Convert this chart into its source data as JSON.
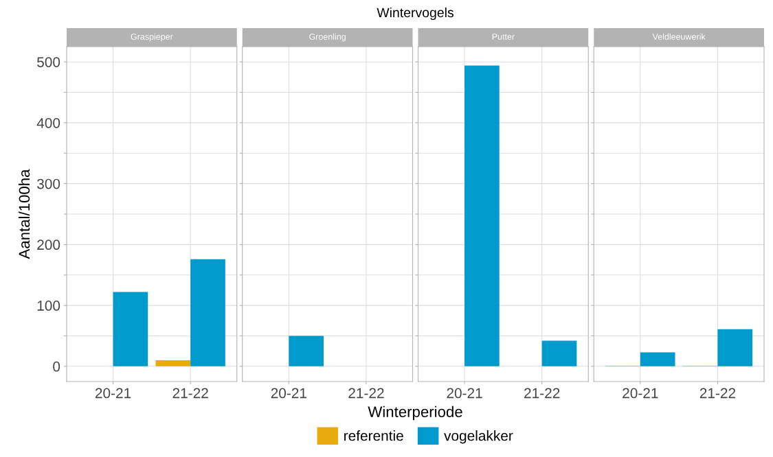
{
  "chart_data": [
    {
      "type": "bar",
      "title": "Graspieper",
      "ylabel": "Aantal/100ha",
      "annotations": [
        "Wintervogels",
        "Winterperiode"
      ],
      "categories": [
        "20-21",
        "21-22"
      ],
      "series": [
        {
          "name": "referentie",
          "color": "#e8ab0e",
          "values": [
            null,
            10
          ]
        },
        {
          "name": "vogelakker",
          "color": "#009acd",
          "values": [
            122,
            176
          ]
        }
      ],
      "ylim": [
        -25,
        525
      ],
      "yticks": [
        0,
        {
          "value": 50,
          "label": null
        },
        100,
        {
          "value": 150,
          "label": null
        },
        200,
        {
          "value": 250,
          "label": null
        },
        300,
        {
          "value": 350,
          "label": null
        },
        400,
        {
          "value": 450,
          "label": null
        },
        500
      ],
      "grid": true,
      "legend": "bottom"
    },
    {
      "type": "bar",
      "title": "Groenling",
      "categories": [
        "20-21",
        "21-22"
      ],
      "series": [
        {
          "color": "#e8ab0e",
          "values": [
            null,
            null
          ]
        },
        {
          "color": "#009acd",
          "values": [
            50,
            null
          ]
        }
      ],
      "ylim": [
        -25,
        525
      ],
      "yticks": [
        0,
        {
          "value": 50,
          "label": null
        },
        100,
        {
          "value": 150,
          "label": null
        },
        200,
        {
          "value": 250,
          "label": null
        },
        300,
        {
          "value": 350,
          "label": null
        },
        400,
        {
          "value": 450,
          "label": null
        },
        500
      ],
      "grid": true,
      "tick_labels": "x"
    },
    {
      "type": "bar",
      "title": "Putter",
      "categories": [
        "20-21",
        "21-22"
      ],
      "series": [
        {
          "color": "#e8ab0e",
          "values": [
            null,
            null
          ]
        },
        {
          "color": "#009acd",
          "values": [
            494,
            42
          ]
        }
      ],
      "ylim": [
        -25,
        525
      ],
      "yticks": [
        0,
        {
          "value": 50,
          "label": null
        },
        100,
        {
          "value": 150,
          "label": null
        },
        200,
        {
          "value": 250,
          "label": null
        },
        300,
        {
          "value": 350,
          "label": null
        },
        400,
        {
          "value": 450,
          "label": null
        },
        500
      ],
      "grid": true,
      "tick_labels": "x"
    },
    {
      "type": "bar",
      "title": "Veldleeuwerik",
      "categories": [
        "20-21",
        "21-22"
      ],
      "series": [
        {
          "color": "#e8ab0e",
          "values": [
            1,
            1
          ]
        },
        {
          "color": "#009acd",
          "values": [
            23,
            61
          ]
        }
      ],
      "ylim": [
        -25,
        525
      ],
      "yticks": [
        0,
        {
          "value": 50,
          "label": null
        },
        100,
        {
          "value": 150,
          "label": null
        },
        200,
        {
          "value": 250,
          "label": null
        },
        300,
        {
          "value": 350,
          "label": null
        },
        400,
        {
          "value": 450,
          "label": null
        },
        500
      ],
      "grid": true,
      "tick_labels": "x"
    }
  ]
}
